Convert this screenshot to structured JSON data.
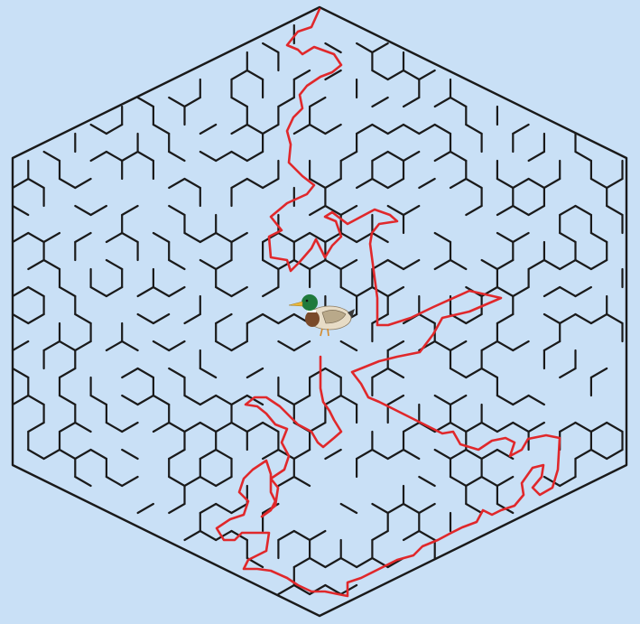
{
  "puzzle": {
    "type": "hexagonal-maze",
    "goal_character": "mallard-duck",
    "solution_shown": true
  },
  "colors": {
    "background": "#c9e0f6",
    "maze_walls": "#1a1a1a",
    "solution_path": "#e0282b",
    "duck_head": "#1f7a3c",
    "duck_breast": "#7a4a2a",
    "duck_body": "#e7dcc6",
    "duck_bill": "#e9b83a"
  }
}
